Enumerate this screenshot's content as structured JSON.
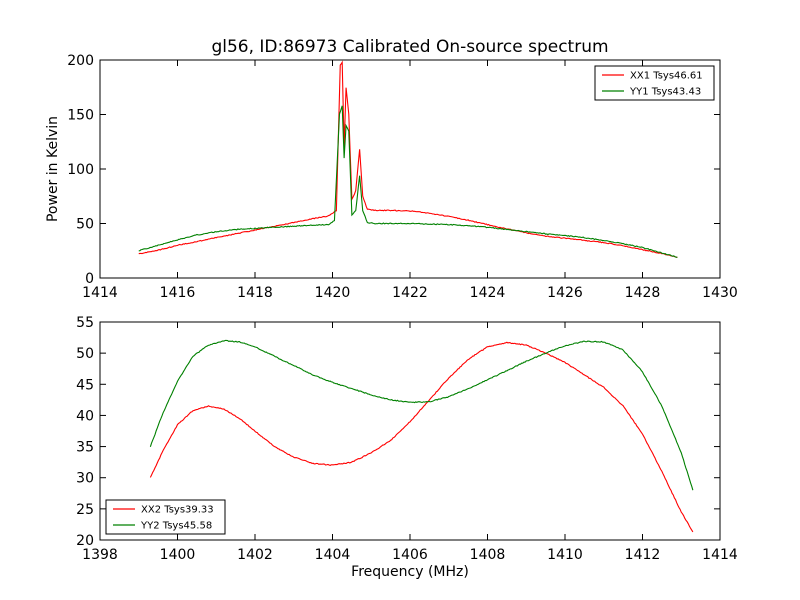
{
  "chart_data": [
    {
      "type": "line",
      "title": "gl56, ID:86973 Calibrated On-source spectrum",
      "xlabel": "",
      "ylabel": "Power in Kelvin",
      "xlim": [
        1414,
        1430
      ],
      "ylim": [
        0,
        200
      ],
      "xticks": [
        1414,
        1416,
        1418,
        1420,
        1422,
        1424,
        1426,
        1428,
        1430
      ],
      "yticks": [
        0,
        50,
        100,
        150,
        200
      ],
      "legend_position": "top-right",
      "grid": false,
      "series": [
        {
          "name": "XX1 Tsys46.61",
          "color": "#ff0000",
          "points": [
            [
              1415.0,
              22
            ],
            [
              1415.5,
              25.5
            ],
            [
              1416.0,
              30
            ],
            [
              1416.5,
              33.5
            ],
            [
              1417.0,
              37
            ],
            [
              1417.5,
              40.5
            ],
            [
              1418.0,
              44
            ],
            [
              1418.5,
              47.5
            ],
            [
              1419.0,
              51
            ],
            [
              1419.5,
              54.5
            ],
            [
              1419.9,
              57
            ],
            [
              1420.1,
              62
            ],
            [
              1420.2,
              195
            ],
            [
              1420.25,
              198
            ],
            [
              1420.3,
              120
            ],
            [
              1420.35,
              175
            ],
            [
              1420.42,
              150
            ],
            [
              1420.5,
              72
            ],
            [
              1420.6,
              80
            ],
            [
              1420.7,
              118
            ],
            [
              1420.78,
              75
            ],
            [
              1420.9,
              63
            ],
            [
              1421.1,
              62
            ],
            [
              1421.5,
              62
            ],
            [
              1422.0,
              61.5
            ],
            [
              1422.5,
              59.5
            ],
            [
              1423.0,
              56.5
            ],
            [
              1423.5,
              53
            ],
            [
              1424.0,
              49
            ],
            [
              1424.5,
              45
            ],
            [
              1425.0,
              41.5
            ],
            [
              1425.5,
              38.5
            ],
            [
              1426.0,
              36.5
            ],
            [
              1426.5,
              34.5
            ],
            [
              1427.0,
              32.5
            ],
            [
              1427.5,
              29.5
            ],
            [
              1428.0,
              26
            ],
            [
              1428.5,
              22.5
            ],
            [
              1428.9,
              19
            ]
          ]
        },
        {
          "name": "YY1 Tsys43.43",
          "color": "#008000",
          "points": [
            [
              1415.0,
              25
            ],
            [
              1415.5,
              30
            ],
            [
              1416.0,
              35
            ],
            [
              1416.5,
              39.5
            ],
            [
              1417.0,
              42.5
            ],
            [
              1417.5,
              44.5
            ],
            [
              1418.0,
              45.5
            ],
            [
              1418.5,
              46.5
            ],
            [
              1419.0,
              47.5
            ],
            [
              1419.5,
              48.5
            ],
            [
              1419.9,
              49
            ],
            [
              1420.05,
              53
            ],
            [
              1420.18,
              150
            ],
            [
              1420.25,
              158
            ],
            [
              1420.3,
              110
            ],
            [
              1420.35,
              140
            ],
            [
              1420.42,
              135
            ],
            [
              1420.5,
              58
            ],
            [
              1420.6,
              62
            ],
            [
              1420.7,
              94
            ],
            [
              1420.78,
              62
            ],
            [
              1420.9,
              51
            ],
            [
              1421.1,
              50
            ],
            [
              1421.5,
              50
            ],
            [
              1422.0,
              50
            ],
            [
              1422.5,
              49.5
            ],
            [
              1423.0,
              49
            ],
            [
              1423.5,
              48
            ],
            [
              1424.0,
              46.5
            ],
            [
              1424.5,
              44.5
            ],
            [
              1425.0,
              42.5
            ],
            [
              1425.5,
              40.5
            ],
            [
              1426.0,
              39
            ],
            [
              1426.5,
              37
            ],
            [
              1427.0,
              34.5
            ],
            [
              1427.5,
              31.5
            ],
            [
              1428.0,
              28
            ],
            [
              1428.5,
              23
            ],
            [
              1428.9,
              19
            ]
          ]
        }
      ]
    },
    {
      "type": "line",
      "title": "",
      "xlabel": "Frequency (MHz)",
      "ylabel": "",
      "xlim": [
        1398,
        1414
      ],
      "ylim": [
        20,
        55
      ],
      "xticks": [
        1398,
        1400,
        1402,
        1404,
        1406,
        1408,
        1410,
        1412,
        1414
      ],
      "yticks": [
        20,
        25,
        30,
        35,
        40,
        45,
        50,
        55
      ],
      "legend_position": "bottom-left",
      "grid": false,
      "series": [
        {
          "name": "XX2 Tsys39.33",
          "color": "#ff0000",
          "points": [
            [
              1399.3,
              30
            ],
            [
              1399.6,
              34
            ],
            [
              1400.0,
              38.5
            ],
            [
              1400.4,
              40.8
            ],
            [
              1400.8,
              41.5
            ],
            [
              1401.2,
              41
            ],
            [
              1401.6,
              39.5
            ],
            [
              1402.0,
              37.5
            ],
            [
              1402.5,
              35
            ],
            [
              1403.0,
              33.3
            ],
            [
              1403.5,
              32.3
            ],
            [
              1404.0,
              32
            ],
            [
              1404.5,
              32.5
            ],
            [
              1405.0,
              34
            ],
            [
              1405.5,
              36
            ],
            [
              1406.0,
              39
            ],
            [
              1406.5,
              42.5
            ],
            [
              1407.0,
              46
            ],
            [
              1407.5,
              49
            ],
            [
              1408.0,
              51
            ],
            [
              1408.5,
              51.7
            ],
            [
              1409.0,
              51.3
            ],
            [
              1409.5,
              50
            ],
            [
              1410.0,
              48.5
            ],
            [
              1410.5,
              46.5
            ],
            [
              1411.0,
              44.5
            ],
            [
              1411.5,
              41.5
            ],
            [
              1412.0,
              37
            ],
            [
              1412.5,
              31
            ],
            [
              1413.0,
              24.5
            ],
            [
              1413.3,
              21.3
            ]
          ]
        },
        {
          "name": "YY2 Tsys45.58",
          "color": "#008000",
          "points": [
            [
              1399.3,
              35
            ],
            [
              1399.6,
              40
            ],
            [
              1400.0,
              45.5
            ],
            [
              1400.4,
              49.5
            ],
            [
              1400.8,
              51.3
            ],
            [
              1401.2,
              52
            ],
            [
              1401.6,
              51.8
            ],
            [
              1402.0,
              51
            ],
            [
              1402.5,
              49.5
            ],
            [
              1403.0,
              48
            ],
            [
              1403.5,
              46.5
            ],
            [
              1404.0,
              45.3
            ],
            [
              1404.5,
              44.3
            ],
            [
              1405.0,
              43.3
            ],
            [
              1405.5,
              42.5
            ],
            [
              1406.0,
              42.1
            ],
            [
              1406.5,
              42.2
            ],
            [
              1407.0,
              43
            ],
            [
              1407.5,
              44.3
            ],
            [
              1408.0,
              45.7
            ],
            [
              1408.5,
              47.2
            ],
            [
              1409.0,
              48.7
            ],
            [
              1409.5,
              50
            ],
            [
              1410.0,
              51.2
            ],
            [
              1410.5,
              51.9
            ],
            [
              1411.0,
              51.8
            ],
            [
              1411.5,
              50.5
            ],
            [
              1412.0,
              47
            ],
            [
              1412.5,
              41.5
            ],
            [
              1413.0,
              34
            ],
            [
              1413.3,
              28
            ]
          ]
        }
      ]
    }
  ]
}
